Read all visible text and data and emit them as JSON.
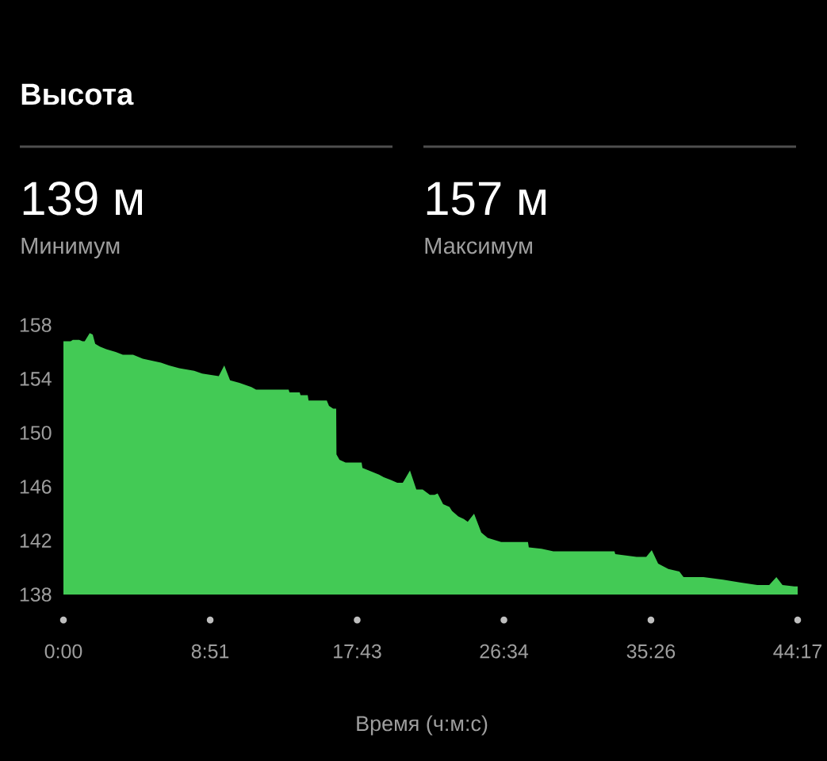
{
  "chart_data": {
    "type": "area",
    "title": "Высота",
    "xlabel": "Время (ч:м:с)",
    "annotations": [
      "139 м",
      "Минимум",
      "157 м",
      "Максимум"
    ],
    "x": [
      0,
      26,
      34,
      57,
      69,
      77,
      95,
      106,
      115,
      132,
      155,
      189,
      215,
      252,
      287,
      353,
      382,
      419,
      473,
      502,
      562,
      582,
      603,
      637,
      680,
      697,
      815,
      818,
      855,
      858,
      884,
      887,
      953,
      961,
      976,
      987,
      988,
      999,
      1021,
      1079,
      1082,
      1105,
      1142,
      1159,
      1185,
      1208,
      1228,
      1254,
      1277,
      1300,
      1326,
      1343,
      1354,
      1374,
      1397,
      1406,
      1429,
      1449,
      1463,
      1486,
      1512,
      1535,
      1584,
      1681,
      1684,
      1730,
      1773,
      1994,
      1997,
      2074,
      2109,
      2129,
      2152,
      2189,
      2229,
      2244,
      2316,
      2387,
      2448,
      2511,
      2554,
      2580,
      2602,
      2645,
      2657
    ],
    "values": [
      156.8,
      156.8,
      156.9,
      156.9,
      156.8,
      156.8,
      157.4,
      157.3,
      156.6,
      156.4,
      156.2,
      156.0,
      155.8,
      155.8,
      155.5,
      155.2,
      155.0,
      154.8,
      154.6,
      154.4,
      154.2,
      155.0,
      153.9,
      153.7,
      153.4,
      153.2,
      153.2,
      153.0,
      153.0,
      152.8,
      152.8,
      152.4,
      152.4,
      152.0,
      151.8,
      151.8,
      148.4,
      148.0,
      147.8,
      147.8,
      147.4,
      147.2,
      146.9,
      146.7,
      146.5,
      146.3,
      146.3,
      147.2,
      145.8,
      145.8,
      145.4,
      145.4,
      145.5,
      144.7,
      144.5,
      144.2,
      143.8,
      143.6,
      143.4,
      144.0,
      142.6,
      142.2,
      141.9,
      141.9,
      141.5,
      141.4,
      141.2,
      141.2,
      141.0,
      140.8,
      140.8,
      141.3,
      140.3,
      139.9,
      139.7,
      139.3,
      139.3,
      139.1,
      138.9,
      138.7,
      138.7,
      139.3,
      138.7,
      138.6,
      138.6
    ],
    "color": "#43ca55",
    "xlim": [
      0,
      2657
    ],
    "xticks": [
      {
        "value": 0,
        "label": "0:00"
      },
      {
        "value": 531,
        "label": "8:51"
      },
      {
        "value": 1063,
        "label": "17:43"
      },
      {
        "value": 1594,
        "label": "26:34"
      },
      {
        "value": 2126,
        "label": "35:26"
      },
      {
        "value": 2657,
        "label": "44:17"
      }
    ],
    "ylim": [
      138,
      158
    ],
    "yticks": [
      138,
      142,
      146,
      150,
      154,
      158
    ]
  }
}
